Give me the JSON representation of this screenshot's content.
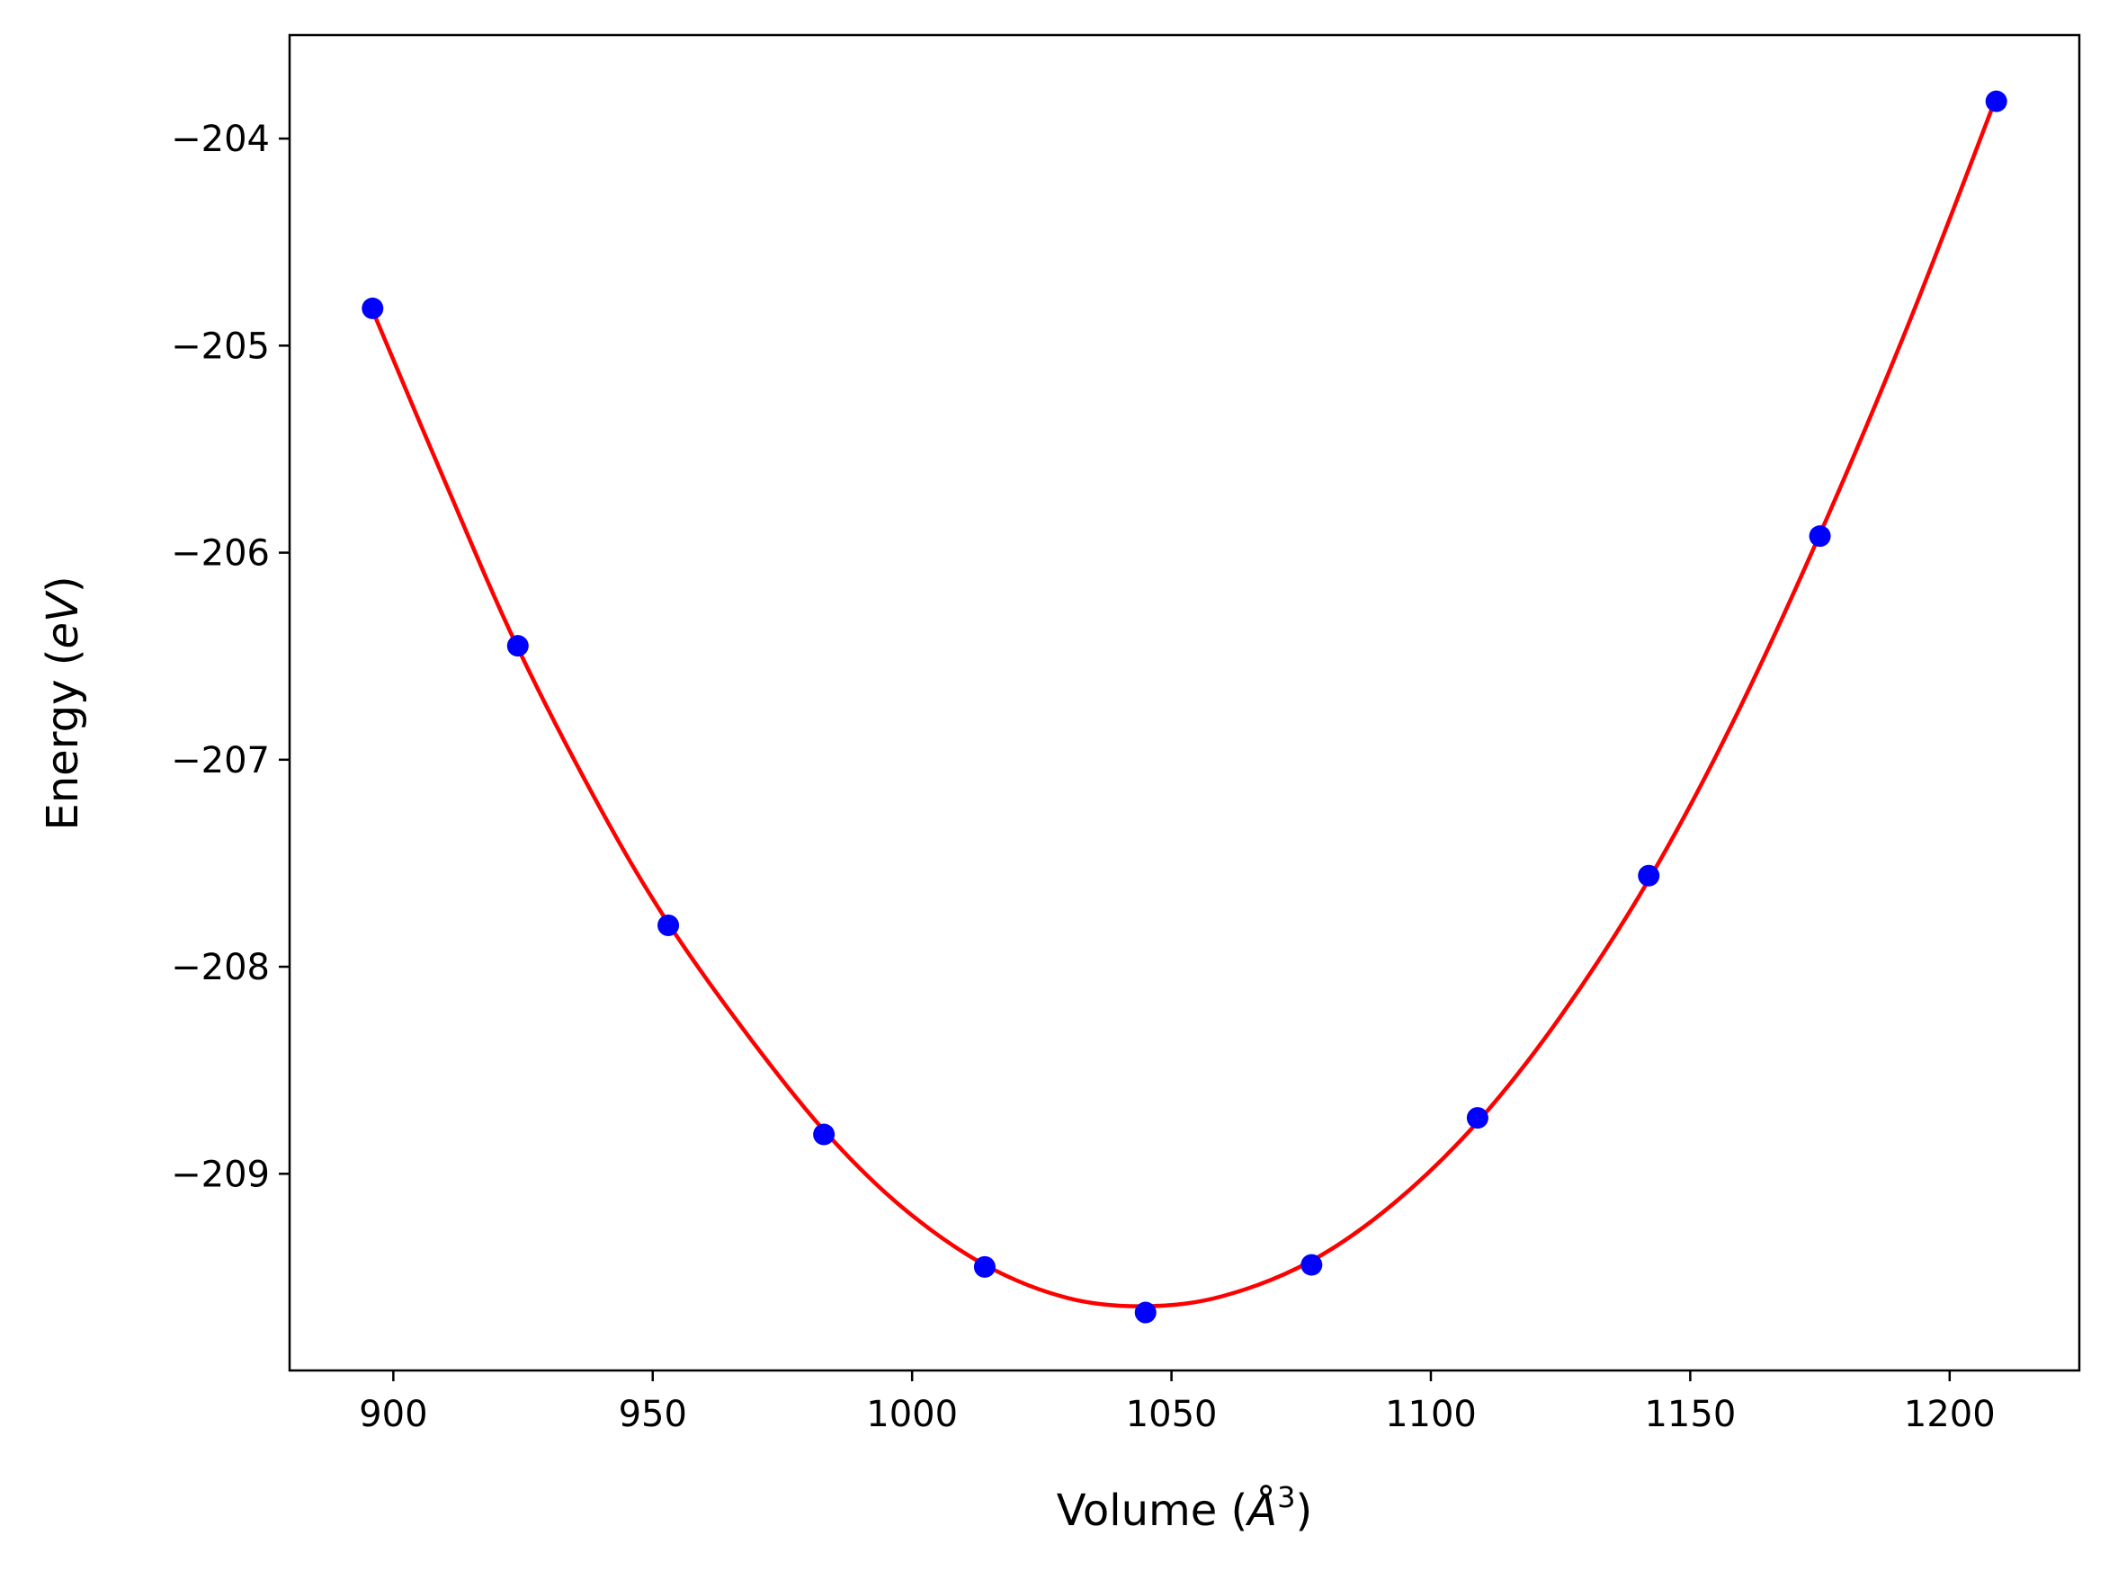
{
  "chart_data": {
    "type": "scatter",
    "title": "",
    "xlabel": "Volume (Å³)",
    "ylabel": "Energy (eV)",
    "xlabel_parts": {
      "prefix": "Volume (",
      "symbol": "Å",
      "exponent": "3",
      "suffix": ")"
    },
    "ylabel_parts": {
      "prefix": "Energy (",
      "symbol": "eV",
      "suffix": ")"
    },
    "xlim": [
      880,
      1225
    ],
    "ylim": [
      -209.95,
      -203.5
    ],
    "xticks": [
      900,
      950,
      1000,
      1050,
      1100,
      1150,
      1200
    ],
    "xtick_labels": [
      "900",
      "950",
      "1000",
      "1050",
      "1100",
      "1150",
      "1200"
    ],
    "yticks": [
      -204,
      -205,
      -206,
      -207,
      -208,
      -209
    ],
    "ytick_labels": [
      "−204",
      "−205",
      "−206",
      "−207",
      "−208",
      "−209"
    ],
    "grid": false,
    "series": [
      {
        "kind": "points",
        "color": "#0000ff",
        "x": [
          896,
          924,
          953,
          983,
          1014,
          1045,
          1077,
          1109,
          1142,
          1175,
          1209
        ],
        "y": [
          -204.82,
          -206.45,
          -207.8,
          -208.81,
          -209.45,
          -209.67,
          -209.44,
          -208.73,
          -207.56,
          -205.92,
          -203.82
        ]
      },
      {
        "kind": "fit-curve",
        "color": "#ff0000",
        "x": [
          896,
          910,
          924,
          940,
          953,
          968,
          983,
          998,
          1014,
          1030,
          1045,
          1060,
          1077,
          1093,
          1109,
          1125,
          1142,
          1158,
          1175,
          1192,
          1209
        ],
        "y": [
          -204.83,
          -205.66,
          -206.46,
          -207.24,
          -207.79,
          -208.32,
          -208.79,
          -209.16,
          -209.44,
          -209.6,
          -209.64,
          -209.59,
          -209.42,
          -209.14,
          -208.75,
          -208.24,
          -207.58,
          -206.83,
          -205.91,
          -204.9,
          -203.8
        ]
      }
    ]
  }
}
